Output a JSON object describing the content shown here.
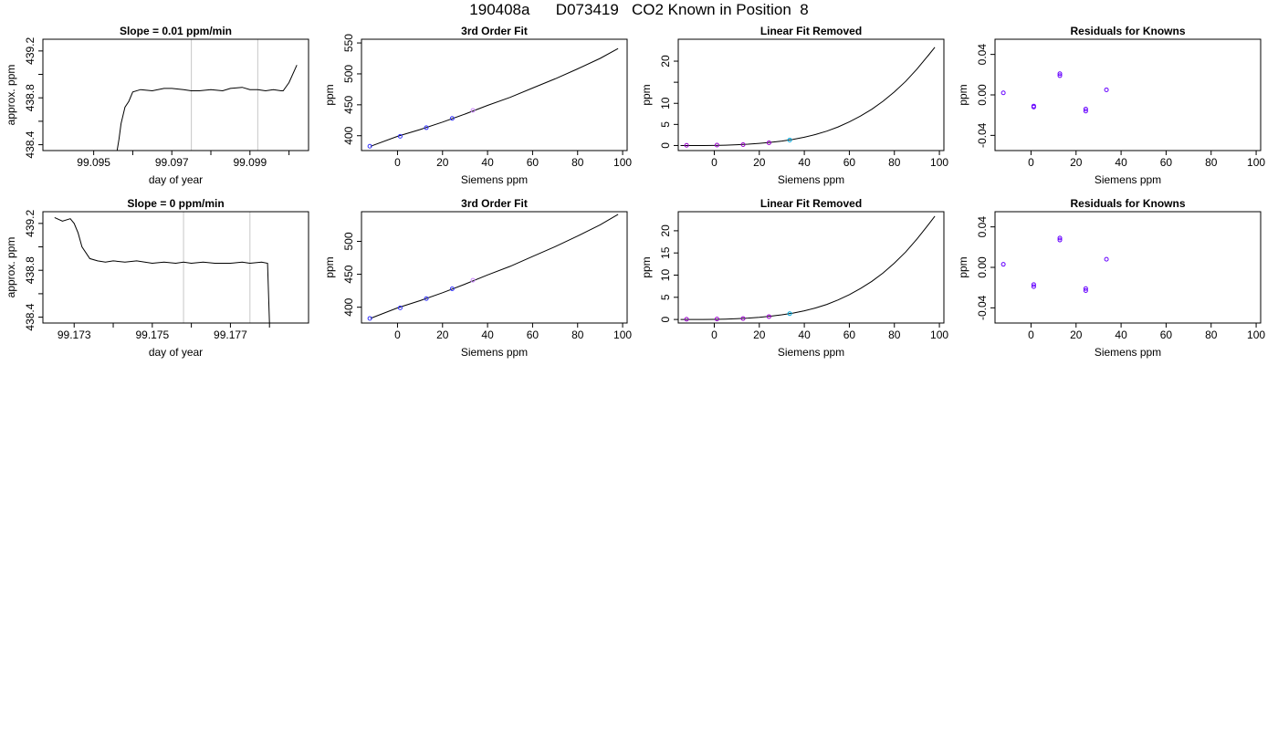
{
  "page": {
    "title": "190408a      D073419   CO2 Known in Position  8"
  },
  "chart_data": [
    {
      "type": "line",
      "title": "Slope =  0.01  ppm/min",
      "xlabel": "day of year",
      "ylabel": "approx. ppm",
      "xlim": [
        99.0937,
        99.1005
      ],
      "ylim": [
        438.35,
        439.3
      ],
      "x_ticks": [
        99.095,
        99.096,
        99.097,
        99.098,
        99.099,
        99.1
      ],
      "x_tick_labels": [
        "99.095",
        "",
        "99.097",
        "",
        "99.099",
        ""
      ],
      "y_ticks": [
        438.4,
        438.6,
        438.8,
        439.0,
        439.2
      ],
      "y_tick_labels": [
        "438.4",
        "",
        "438.8",
        "",
        "439.2"
      ],
      "vlines": [
        99.0975,
        99.0992
      ],
      "series": [
        {
          "values_x": [
            99.0956,
            99.09565,
            99.0957,
            99.0958,
            99.0959,
            99.096,
            99.0962,
            99.0965,
            99.0968,
            99.097,
            99.0973,
            99.0975,
            99.0977,
            99.098,
            99.0983,
            99.0985,
            99.0988,
            99.099,
            99.0992,
            99.0994,
            99.0996,
            99.0998,
            99.09985,
            99.1,
            99.1002
          ],
          "values_y": [
            438.35,
            438.45,
            438.58,
            438.72,
            438.77,
            438.85,
            438.87,
            438.86,
            438.88,
            438.88,
            438.87,
            438.86,
            438.86,
            438.87,
            438.86,
            438.88,
            438.89,
            438.87,
            438.87,
            438.86,
            438.87,
            438.86,
            438.86,
            438.93,
            439.08
          ]
        }
      ]
    },
    {
      "type": "scatter",
      "title": "3rd Order Fit",
      "xlabel": "Siemens ppm",
      "ylabel": "ppm",
      "xlim": [
        -16,
        102
      ],
      "ylim": [
        376,
        556
      ],
      "x_ticks": [
        0,
        20,
        40,
        60,
        80,
        100
      ],
      "y_ticks": [
        400,
        450,
        500,
        550
      ],
      "curve": {
        "x": [
          -12,
          0,
          10,
          20,
          30,
          40,
          50,
          60,
          70,
          80,
          90,
          98
        ],
        "y": [
          383,
          399,
          410,
          422,
          435,
          449,
          462,
          477,
          492,
          508,
          525,
          541
        ]
      },
      "points": {
        "x": [
          -12.3,
          1.2,
          12.8,
          24.3,
          33.5
        ],
        "y": [
          383,
          399,
          413,
          428,
          441
        ],
        "colors": [
          "#3333ff",
          "#3333ff",
          "#3333ff",
          "#3333ff",
          "#cc88ff"
        ]
      }
    },
    {
      "type": "scatter",
      "title": "Linear Fit Removed",
      "xlabel": "Siemens ppm",
      "ylabel": "ppm",
      "xlim": [
        -16,
        102
      ],
      "ylim": [
        -1.2,
        25.2
      ],
      "x_ticks": [
        0,
        20,
        40,
        60,
        80,
        100
      ],
      "y_ticks": [
        0,
        5,
        10,
        15,
        20
      ],
      "y_tick_labels": [
        "0",
        "5",
        "10",
        "",
        "20"
      ],
      "curve": {
        "x": [
          -15,
          -10,
          -5,
          0,
          5,
          10,
          15,
          20,
          25,
          30,
          35,
          40,
          45,
          50,
          55,
          60,
          65,
          70,
          75,
          80,
          85,
          90,
          95,
          98
        ],
        "y": [
          0,
          0,
          0,
          0.02,
          0.08,
          0.18,
          0.32,
          0.5,
          0.75,
          1.05,
          1.45,
          1.95,
          2.6,
          3.4,
          4.4,
          5.6,
          7.0,
          8.6,
          10.5,
          12.7,
          15.2,
          18.1,
          21.3,
          23.3
        ]
      },
      "points": {
        "x": [
          -12.3,
          1.2,
          12.8,
          24.3,
          33.5
        ],
        "y": [
          0.05,
          0.1,
          0.2,
          0.65,
          1.3
        ],
        "colors": [
          "#9900cc",
          "#9900cc",
          "#9900cc",
          "#9900cc",
          "#00aadd"
        ]
      }
    },
    {
      "type": "scatter",
      "title": "Residuals for Knowns",
      "xlabel": "Siemens ppm",
      "ylabel": "ppm",
      "xlim": [
        -16,
        102
      ],
      "ylim": [
        -0.055,
        0.055
      ],
      "x_ticks": [
        0,
        20,
        40,
        60,
        80,
        100
      ],
      "y_ticks": [
        -0.04,
        0.0,
        0.04
      ],
      "y_tick_labels": [
        "-0.04",
        "0.00",
        "0.04"
      ],
      "points": {
        "x": [
          -12.3,
          1.2,
          1.2,
          12.8,
          12.8,
          24.3,
          24.3,
          33.5
        ],
        "y": [
          0.002,
          -0.011,
          -0.012,
          0.021,
          0.019,
          -0.014,
          -0.016,
          0.005
        ],
        "colors": [
          "#6600ff",
          "#6600ff",
          "#6600ff",
          "#6600ff",
          "#6600ff",
          "#6600ff",
          "#6600ff",
          "#6600ff"
        ]
      }
    },
    {
      "type": "line",
      "title": "Slope =  0  ppm/min",
      "xlabel": "day of year",
      "ylabel": "approx. ppm",
      "xlim": [
        99.1722,
        99.179
      ],
      "ylim": [
        438.35,
        439.3
      ],
      "x_ticks": [
        99.173,
        99.174,
        99.175,
        99.176,
        99.177,
        99.178
      ],
      "x_tick_labels": [
        "99.173",
        "",
        "99.175",
        "",
        "99.177",
        ""
      ],
      "y_ticks": [
        438.4,
        438.6,
        438.8,
        439.0,
        439.2
      ],
      "y_tick_labels": [
        "438.4",
        "",
        "438.8",
        "",
        "439.2"
      ],
      "vlines": [
        99.1758,
        99.1775
      ],
      "series": [
        {
          "values_x": [
            99.1725,
            99.1727,
            99.1729,
            99.173,
            99.1731,
            99.1732,
            99.1734,
            99.1736,
            99.1738,
            99.174,
            99.1743,
            99.1746,
            99.175,
            99.1753,
            99.1756,
            99.1758,
            99.176,
            99.1763,
            99.1766,
            99.177,
            99.1773,
            99.1775,
            99.1778,
            99.17795,
            99.178
          ],
          "values_y": [
            439.25,
            439.22,
            439.24,
            439.2,
            439.12,
            439.0,
            438.9,
            438.88,
            438.87,
            438.88,
            438.87,
            438.88,
            438.86,
            438.87,
            438.86,
            438.87,
            438.86,
            438.87,
            438.86,
            438.86,
            438.87,
            438.86,
            438.87,
            438.86,
            438.35
          ]
        }
      ]
    },
    {
      "type": "scatter",
      "title": "3rd Order Fit",
      "xlabel": "Siemens ppm",
      "ylabel": "ppm",
      "xlim": [
        -16,
        102
      ],
      "ylim": [
        376,
        545
      ],
      "x_ticks": [
        0,
        20,
        40,
        60,
        80,
        100
      ],
      "y_ticks": [
        400,
        450,
        500
      ],
      "curve": {
        "x": [
          -12,
          0,
          10,
          20,
          30,
          40,
          50,
          60,
          70,
          80,
          90,
          98
        ],
        "y": [
          383,
          399,
          410,
          422,
          435,
          449,
          462,
          477,
          492,
          508,
          525,
          541
        ]
      },
      "points": {
        "x": [
          -12.3,
          1.2,
          12.8,
          24.3,
          33.5
        ],
        "y": [
          383,
          399,
          413,
          428,
          441
        ],
        "colors": [
          "#3333ff",
          "#3333ff",
          "#3333ff",
          "#3333ff",
          "#cc88ff"
        ]
      }
    },
    {
      "type": "scatter",
      "title": "Linear Fit Removed",
      "xlabel": "Siemens ppm",
      "ylabel": "ppm",
      "xlim": [
        -16,
        102
      ],
      "ylim": [
        -0.8,
        24.3
      ],
      "x_ticks": [
        0,
        20,
        40,
        60,
        80,
        100
      ],
      "y_ticks": [
        0,
        5,
        10,
        15,
        20
      ],
      "curve": {
        "x": [
          -15,
          -10,
          -5,
          0,
          5,
          10,
          15,
          20,
          25,
          30,
          35,
          40,
          45,
          50,
          55,
          60,
          65,
          70,
          75,
          80,
          85,
          90,
          95,
          98
        ],
        "y": [
          0,
          0,
          0,
          0.02,
          0.08,
          0.18,
          0.32,
          0.5,
          0.75,
          1.05,
          1.45,
          1.95,
          2.6,
          3.4,
          4.4,
          5.6,
          7.0,
          8.6,
          10.5,
          12.7,
          15.2,
          18.1,
          21.3,
          23.3
        ]
      },
      "points": {
        "x": [
          -12.3,
          1.2,
          12.8,
          24.3,
          33.5
        ],
        "y": [
          0.05,
          0.1,
          0.2,
          0.65,
          1.3
        ],
        "colors": [
          "#9900cc",
          "#9900cc",
          "#9900cc",
          "#9900cc",
          "#00aadd"
        ]
      }
    },
    {
      "type": "scatter",
      "title": "Residuals for Knowns",
      "xlabel": "Siemens ppm",
      "ylabel": "ppm",
      "xlim": [
        -16,
        102
      ],
      "ylim": [
        -0.055,
        0.055
      ],
      "x_ticks": [
        0,
        20,
        40,
        60,
        80,
        100
      ],
      "y_ticks": [
        -0.04,
        0.0,
        0.04
      ],
      "y_tick_labels": [
        "-0.04",
        "0.00",
        "0.04"
      ],
      "points": {
        "x": [
          -12.3,
          1.2,
          1.2,
          12.8,
          12.8,
          24.3,
          24.3,
          33.5
        ],
        "y": [
          0.003,
          -0.017,
          -0.019,
          0.029,
          0.027,
          -0.021,
          -0.023,
          0.008
        ],
        "colors": [
          "#6600ff",
          "#6600ff",
          "#6600ff",
          "#6600ff",
          "#6600ff",
          "#6600ff",
          "#6600ff",
          "#6600ff"
        ]
      }
    }
  ]
}
